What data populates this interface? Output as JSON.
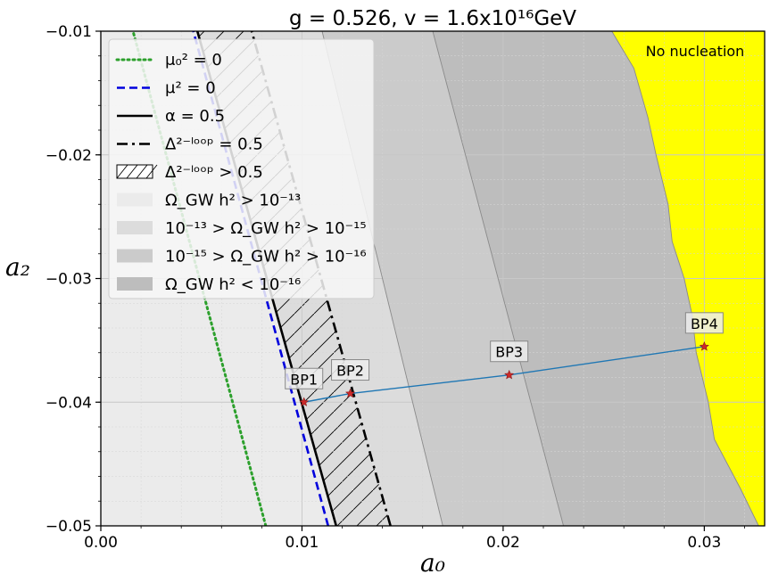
{
  "chart_data": {
    "type": "line",
    "title": "g = 0.526, v = 1.6x10¹⁶GeV",
    "xlabel": "a₀",
    "ylabel": "a₂",
    "xlim": [
      0.0,
      0.033
    ],
    "ylim": [
      -0.05,
      -0.01
    ],
    "x_ticks": [
      0.0,
      0.01,
      0.02,
      0.03
    ],
    "x_tick_labels": [
      "0.00",
      "0.01",
      "0.02",
      "0.03"
    ],
    "y_ticks": [
      -0.01,
      -0.02,
      -0.03,
      -0.04,
      -0.05
    ],
    "y_tick_labels": [
      "−0.01",
      "−0.02",
      "−0.03",
      "−0.04",
      "−0.05"
    ],
    "grid": true,
    "legend_position": "top-left",
    "annotation": "No nucleation",
    "colors": {
      "no_nucleation": "#ffff00",
      "region1": "#ebebeb",
      "region2": "#dcdcdc",
      "region3": "#cbcbcb",
      "region4": "#bdbdbd",
      "mu0_line": "#2ca02c",
      "mu_line": "#0000dd",
      "bp_line": "#1f77b4",
      "bp_marker": "#cc2a2a"
    },
    "legend": [
      {
        "label": "μ₀² = 0",
        "style": "dotted-green"
      },
      {
        "label": "μ² = 0",
        "style": "dashed-blue"
      },
      {
        "label": "α = 0.5",
        "style": "solid-black"
      },
      {
        "label": "Δ²⁻ˡᵒᵒᵖ = 0.5",
        "style": "dashdot-black"
      },
      {
        "label": "Δ²⁻ˡᵒᵒᵖ > 0.5",
        "style": "hatch"
      },
      {
        "label": "Ω_GW h² > 10⁻¹³",
        "style": "fill-1"
      },
      {
        "label": "10⁻¹³ > Ω_GW h² > 10⁻¹⁵",
        "style": "fill-2"
      },
      {
        "label": "10⁻¹⁵ > Ω_GW h² > 10⁻¹⁶",
        "style": "fill-3"
      },
      {
        "label": "Ω_GW h² < 10⁻¹⁶",
        "style": "fill-4"
      }
    ],
    "series": [
      {
        "name": "μ₀² = 0",
        "x": [
          0.0082,
          0.0016
        ],
        "y": [
          -0.05,
          -0.01
        ]
      },
      {
        "name": "μ² = 0",
        "x": [
          0.0113,
          0.0046
        ],
        "y": [
          -0.05,
          -0.01
        ]
      },
      {
        "name": "α = 0.5",
        "x": [
          0.0117,
          0.0048
        ],
        "y": [
          -0.05,
          -0.01
        ]
      },
      {
        "name": "Δ²⁻ˡᵒᵒᵖ = 0.5",
        "x": [
          0.0144,
          0.0075
        ],
        "y": [
          -0.05,
          -0.01
        ]
      }
    ],
    "region_boundaries": [
      {
        "x": [
          0.017,
          0.011
        ],
        "y": [
          -0.05,
          -0.01
        ]
      },
      {
        "x": [
          0.023,
          0.0165
        ],
        "y": [
          -0.05,
          -0.01
        ]
      },
      {
        "x": [
          0.0327,
          0.0318,
          0.0305,
          0.0302,
          0.0296,
          0.0294,
          0.029,
          0.0284,
          0.0282,
          0.0276,
          0.0272,
          0.0265,
          0.0254
        ],
        "y": [
          -0.05,
          -0.047,
          -0.043,
          -0.04,
          -0.036,
          -0.033,
          -0.03,
          -0.027,
          -0.024,
          -0.02,
          -0.017,
          -0.013,
          -0.01
        ]
      }
    ],
    "benchmark_points": [
      {
        "label": "BP1",
        "x": 0.0101,
        "y": -0.04
      },
      {
        "label": "BP2",
        "x": 0.0124,
        "y": -0.0393
      },
      {
        "label": "BP3",
        "x": 0.0203,
        "y": -0.0378
      },
      {
        "label": "BP4",
        "x": 0.03,
        "y": -0.0355
      }
    ]
  }
}
